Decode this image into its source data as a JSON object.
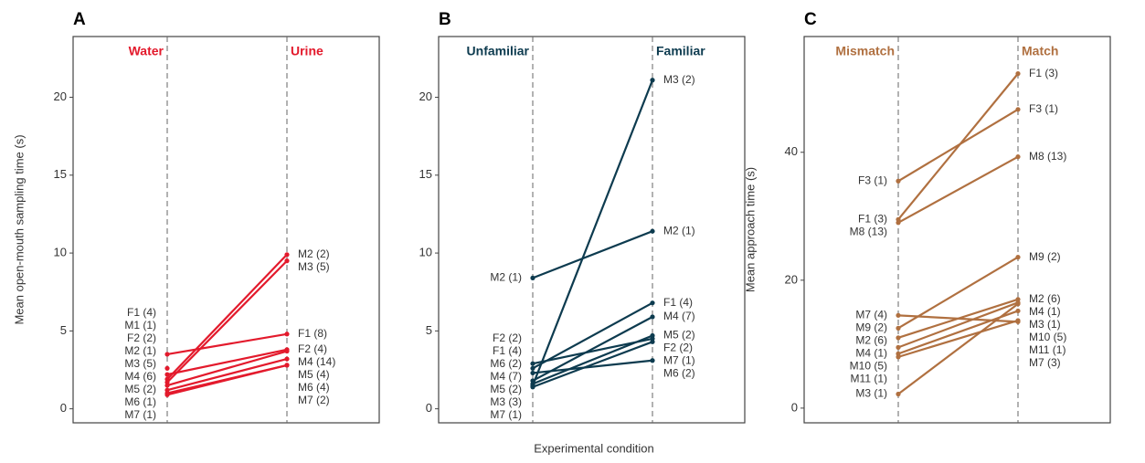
{
  "xlabel": "Experimental condition",
  "chart_data": [
    {
      "type": "slope",
      "title": "A",
      "ylabel": "Mean open-mouth sampling time (s)",
      "categories": [
        "Water",
        "Urine"
      ],
      "color": "#e31a2c",
      "ylim": [
        -0.9,
        23.9
      ],
      "yticks": [
        0,
        5,
        10,
        15,
        20
      ],
      "series": [
        {
          "labels": [
            "F1 (4)",
            "F1 (8)"
          ],
          "values": [
            3.5,
            4.8
          ]
        },
        {
          "labels": [
            "M1 (1)",
            null
          ],
          "values": [
            2.6,
            null
          ]
        },
        {
          "labels": [
            "F2 (2)",
            "F2 (4)"
          ],
          "values": [
            2.2,
            3.8
          ]
        },
        {
          "labels": [
            "M2 (1)",
            "M2 (2)"
          ],
          "values": [
            1.9,
            9.9
          ]
        },
        {
          "labels": [
            "M3 (5)",
            "M3 (5)"
          ],
          "values": [
            1.7,
            9.5
          ]
        },
        {
          "labels": [
            "M4 (6)",
            "M4 (14)"
          ],
          "values": [
            1.5,
            3.7
          ]
        },
        {
          "labels": [
            "M5 (2)",
            "M5 (4)"
          ],
          "values": [
            1.2,
            3.2
          ]
        },
        {
          "labels": [
            "M6 (1)",
            "M6 (4)"
          ],
          "values": [
            1.0,
            2.8
          ]
        },
        {
          "labels": [
            "M7 (1)",
            "M7 (2)"
          ],
          "values": [
            0.9,
            2.8
          ]
        }
      ]
    },
    {
      "type": "slope",
      "title": "B",
      "ylabel": null,
      "categories": [
        "Unfamiliar",
        "Familiar"
      ],
      "color": "#0d3b4f",
      "ylim": [
        -0.9,
        23.9
      ],
      "yticks": [
        0,
        5,
        10,
        15,
        20
      ],
      "series": [
        {
          "labels": [
            "M2 (1)",
            "M2 (1)"
          ],
          "values": [
            8.4,
            11.4
          ]
        },
        {
          "labels": [
            "F2 (2)",
            "F2 (2)"
          ],
          "values": [
            2.9,
            4.5
          ]
        },
        {
          "labels": [
            "F1 (4)",
            "F1 (4)"
          ],
          "values": [
            2.6,
            6.8
          ]
        },
        {
          "labels": [
            "M6 (2)",
            "M6 (2)"
          ],
          "values": [
            2.3,
            3.1
          ]
        },
        {
          "labels": [
            "M4 (7)",
            "M4 (7)"
          ],
          "values": [
            1.8,
            5.9
          ]
        },
        {
          "labels": [
            "M5 (2)",
            "M5 (2)"
          ],
          "values": [
            1.6,
            4.7
          ]
        },
        {
          "labels": [
            "M3 (3)",
            "M3 (2)"
          ],
          "values": [
            1.5,
            21.1
          ]
        },
        {
          "labels": [
            "M7 (1)",
            "M7 (1)"
          ],
          "values": [
            1.4,
            4.3
          ]
        }
      ]
    },
    {
      "type": "slope",
      "title": "C",
      "ylabel": "Mean approach time (s)",
      "categories": [
        "Mismatch",
        "Match"
      ],
      "color": "#b07040",
      "ylim": [
        -2.3,
        58.1
      ],
      "yticks": [
        0,
        20,
        40
      ],
      "series": [
        {
          "labels": [
            "F3 (1)",
            "F3 (1)"
          ],
          "values": [
            35.5,
            46.7
          ]
        },
        {
          "labels": [
            "F1 (3)",
            "F1 (3)"
          ],
          "values": [
            29.5,
            52.3
          ]
        },
        {
          "labels": [
            "M8 (13)",
            "M8 (13)"
          ],
          "values": [
            29,
            39.3
          ]
        },
        {
          "labels": [
            "M7 (4)",
            "M7 (3)"
          ],
          "values": [
            14.5,
            13.5
          ]
        },
        {
          "labels": [
            "M9 (2)",
            "M9 (2)"
          ],
          "values": [
            12.5,
            23.6
          ]
        },
        {
          "labels": [
            "M2 (6)",
            "M2 (6)"
          ],
          "values": [
            11,
            17
          ]
        },
        {
          "labels": [
            "M4 (1)",
            "M4 (1)"
          ],
          "values": [
            9.5,
            16.5
          ]
        },
        {
          "labels": [
            "M10 (5)",
            "M10 (5)"
          ],
          "values": [
            8.5,
            15.2
          ]
        },
        {
          "labels": [
            "M11 (1)",
            "M11 (1)"
          ],
          "values": [
            8,
            13.7
          ]
        },
        {
          "labels": [
            "M3 (1)",
            "M3 (1)"
          ],
          "values": [
            2.2,
            16.3
          ]
        }
      ]
    }
  ]
}
